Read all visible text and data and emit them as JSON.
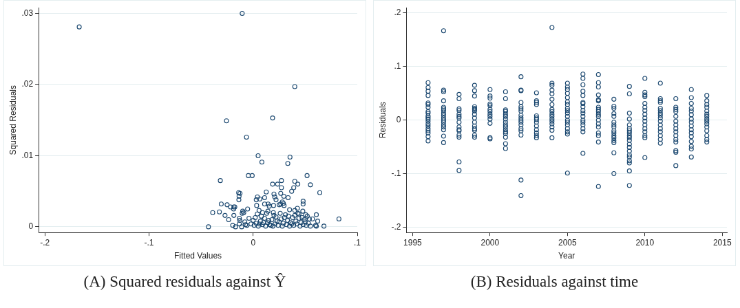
{
  "chart_data": [
    {
      "type": "scatter",
      "xlabel": "Fitted Values",
      "ylabel": "Squared Residuals",
      "color": "#1a476f",
      "marker": "circle",
      "grid": "y",
      "xlim": [
        -0.206,
        0.1
      ],
      "ylim": [
        -0.0008,
        0.0308
      ],
      "xticks": [
        {
          "value": -0.2,
          "label": "-.2"
        },
        {
          "value": -0.1,
          "label": "-.1"
        },
        0,
        {
          "value": 0.1,
          "label": ".1"
        }
      ],
      "yticks": [
        0,
        {
          "value": 0.01,
          "label": ".01"
        },
        {
          "value": 0.02,
          "label": ".02"
        },
        {
          "value": 0.03,
          "label": ".03"
        }
      ],
      "annotations": [
        "(A) Squared residuals against Ŷ"
      ],
      "x": [
        -0.167,
        -0.0105,
        0.04,
        -0.0256,
        0.0187,
        -0.0064,
        0.0048,
        0.0354,
        0.0084,
        0.0333,
        -0.0046,
        -0.0009,
        0.0518,
        -0.0315,
        0.0272,
        0.04,
        0.0187,
        0.0235,
        0.0429,
        0.055,
        0.039,
        0.0272,
        0.037,
        0.0126,
        0.064,
        -0.0139,
        -0.0126,
        0.02,
        0.0265,
        -0.0135,
        -0.0137,
        0.0041,
        0.003,
        0.0064,
        0.011,
        0.0208,
        0.022,
        0.0295,
        0.0336,
        0.048,
        0.048,
        0.028,
        0.029,
        -0.0306,
        -0.025,
        -0.0217,
        -0.0185,
        -0.0176,
        -0.0187,
        -0.0053,
        0.0034,
        0.011,
        0.0144,
        0.0155,
        0.0196,
        0.025,
        0.0265,
        0.0297,
        0.035,
        0.0425,
        0.04,
        -0.0388,
        -0.0324,
        -0.027,
        -0.0235,
        -0.0185,
        -0.01,
        -0.0105,
        -0.009,
        0.0057,
        0.009,
        0.0142,
        0.0194,
        0.0477,
        0.044,
        0.0505,
        0.0607,
        0.062,
        0.057,
        0.0824,
        -0.0429,
        0.068,
        0.0607,
        0.06,
        -0.0196,
        -0.0169,
        -0.0132,
        -0.011,
        -0.0073,
        -0.0132,
        -0.0128,
        0.001,
        0.003,
        0.005,
        0.007,
        0.009,
        0.011,
        0.012,
        0.014,
        0.016,
        0.018,
        0.019,
        0.021,
        0.022,
        0.024,
        0.025,
        0.027,
        0.028,
        0.029,
        0.031,
        0.032,
        0.033,
        0.035,
        0.036,
        0.038,
        0.039,
        0.041,
        0.042,
        0.044,
        0.045,
        0.046,
        0.048,
        0.049,
        0.051,
        0.052,
        0.053,
        0.055,
        0.002,
        0.004,
        0.006,
        0.008,
        0.01,
        0.013,
        0.015,
        0.017,
        0.02,
        0.023,
        0.026,
        0.03,
        0.034,
        0.037,
        0.04,
        0.043,
        0.047,
        -0.002,
        -0.004,
        -0.006,
        -0.008,
        0,
        0.05,
        0.054
      ],
      "values": [
        0.0281,
        0.03,
        0.0197,
        0.0149,
        0.0153,
        0.0126,
        0.01,
        0.0098,
        0.0091,
        0.0089,
        0.0072,
        0.0072,
        0.0072,
        0.0065,
        0.0065,
        0.0064,
        0.006,
        0.006,
        0.006,
        0.0059,
        0.0055,
        0.0055,
        0.005,
        0.0049,
        0.0048,
        0.0048,
        0.0047,
        0.0046,
        0.0047,
        0.0043,
        0.0038,
        0.0042,
        0.0038,
        0.0039,
        0.0041,
        0.0042,
        0.0038,
        0.0043,
        0.0041,
        0.0036,
        0.0032,
        0.0035,
        0.0033,
        0.0032,
        0.0031,
        0.0028,
        0.0028,
        0.0028,
        0.0025,
        0.0025,
        0.003,
        0.0032,
        0.0032,
        0.0029,
        0.003,
        0.0031,
        0.0032,
        0.003,
        0.0024,
        0.0026,
        0.0023,
        0.002,
        0.0021,
        0.0016,
        0.001,
        0.0016,
        0.0022,
        0.0019,
        0.002,
        0.0023,
        0.002,
        0.0022,
        0.002,
        0.0022,
        0.0018,
        0.0017,
        0.0017,
        0.0008,
        0.0011,
        0.0011,
        0,
        0.0001,
        0.0001,
        0.0002,
        0.0002,
        0,
        0.0004,
        0,
        0.0003,
        0.0012,
        0.0009,
        0.0002,
        0.0005,
        0.0001,
        0.0008,
        0.0003,
        0.0012,
        0.0001,
        0.0006,
        0.0003,
        0.001,
        0.0001,
        0.0004,
        0.0014,
        0.0002,
        0.0007,
        0.0011,
        0.0001,
        0.0005,
        0.0017,
        0.0003,
        0.0009,
        0.0001,
        0.0006,
        0.0013,
        0.0002,
        0.0008,
        0.0004,
        0.0012,
        0.0001,
        0.0006,
        0.0003,
        0.001,
        0.0002,
        0.0015,
        0.0005,
        0.0001,
        0.0013,
        0.0018,
        0.0004,
        0.0015,
        0.0006,
        0.0019,
        0.0009,
        0.0002,
        0.0016,
        0.0008,
        0.0019,
        0.0013,
        0.0015,
        0.0004,
        0.0016,
        0.0019,
        0.0013,
        0.0004,
        0.0012,
        0.0002,
        0.0007,
        0.0009,
        0.0007,
        0.0011
      ]
    },
    {
      "type": "scatter",
      "xlabel": "Year",
      "ylabel": "Residuals",
      "color": "#1a476f",
      "marker": "circle",
      "grid": "y",
      "xlim": [
        1994.6,
        2015.3
      ],
      "ylim": [
        -0.21,
        0.21
      ],
      "xticks": [
        1995,
        2000,
        2005,
        2010,
        2015
      ],
      "yticks": [
        {
          "value": -0.2,
          "label": "-.2"
        },
        {
          "value": -0.1,
          "label": "-.1"
        },
        0,
        {
          "value": 0.1,
          "label": ".1"
        },
        {
          "value": 0.2,
          "label": ".2"
        }
      ],
      "annotations": [
        "(B) Residuals against time"
      ],
      "x": [
        1996,
        1996,
        1996,
        1996,
        1996,
        1996,
        1996,
        1996,
        1996,
        1996,
        1996,
        1996,
        1996,
        1996,
        1996,
        1996,
        1996,
        1996,
        1996,
        1996,
        1997,
        1997,
        1997,
        1997,
        1997,
        1997,
        1997,
        1997,
        1997,
        1997,
        1997,
        1997,
        1997,
        1997,
        1997,
        1997,
        1997,
        1998,
        1998,
        1998,
        1998,
        1998,
        1998,
        1998,
        1998,
        1998,
        1998,
        1998,
        1998,
        1998,
        1998,
        1998,
        1999,
        1999,
        1999,
        1999,
        1999,
        1999,
        1999,
        1999,
        1999,
        1999,
        1999,
        1999,
        1999,
        1999,
        1999,
        2000,
        2000,
        2000,
        2000,
        2000,
        2000,
        2000,
        2000,
        2000,
        2000,
        2000,
        2000,
        2000,
        2001,
        2001,
        2001,
        2001,
        2001,
        2001,
        2001,
        2001,
        2001,
        2001,
        2001,
        2001,
        2001,
        2001,
        2001,
        2001,
        2002,
        2002,
        2002,
        2002,
        2002,
        2002,
        2002,
        2002,
        2002,
        2002,
        2002,
        2002,
        2002,
        2002,
        2002,
        2002,
        2002,
        2003,
        2003,
        2003,
        2003,
        2003,
        2003,
        2003,
        2003,
        2003,
        2003,
        2003,
        2003,
        2003,
        2004,
        2004,
        2004,
        2004,
        2004,
        2004,
        2004,
        2004,
        2004,
        2004,
        2004,
        2004,
        2004,
        2004,
        2004,
        2004,
        2004,
        2005,
        2005,
        2005,
        2005,
        2005,
        2005,
        2005,
        2005,
        2005,
        2005,
        2005,
        2005,
        2005,
        2005,
        2005,
        2005,
        2005,
        2005,
        2006,
        2006,
        2006,
        2006,
        2006,
        2006,
        2006,
        2006,
        2006,
        2006,
        2006,
        2006,
        2006,
        2006,
        2006,
        2006,
        2006,
        2007,
        2007,
        2007,
        2007,
        2007,
        2007,
        2007,
        2007,
        2007,
        2007,
        2007,
        2007,
        2007,
        2007,
        2007,
        2007,
        2007,
        2007,
        2008,
        2008,
        2008,
        2008,
        2008,
        2008,
        2008,
        2008,
        2008,
        2008,
        2008,
        2008,
        2008,
        2008,
        2008,
        2008,
        2009,
        2009,
        2009,
        2009,
        2009,
        2009,
        2009,
        2009,
        2009,
        2009,
        2009,
        2009,
        2009,
        2009,
        2009,
        2009,
        2009,
        2009,
        2009,
        2009,
        2010,
        2010,
        2010,
        2010,
        2010,
        2010,
        2010,
        2010,
        2010,
        2010,
        2010,
        2010,
        2010,
        2010,
        2010,
        2010,
        2011,
        2011,
        2011,
        2011,
        2011,
        2011,
        2011,
        2011,
        2011,
        2011,
        2011,
        2011,
        2011,
        2011,
        2011,
        2011,
        2012,
        2012,
        2012,
        2012,
        2012,
        2012,
        2012,
        2012,
        2012,
        2012,
        2012,
        2012,
        2012,
        2012,
        2012,
        2013,
        2013,
        2013,
        2013,
        2013,
        2013,
        2013,
        2013,
        2013,
        2013,
        2013,
        2013,
        2013,
        2013,
        2013,
        2013,
        2014,
        2014,
        2014,
        2014,
        2014,
        2014,
        2014,
        2014,
        2014,
        2014,
        2014,
        2014,
        2014,
        2014,
        2014
      ],
      "values": [
        0.07,
        0.061,
        0.054,
        0.046,
        0.032,
        0.029,
        0.024,
        0.016,
        0.013,
        0.008,
        0.005,
        0.002,
        -0.002,
        -0.007,
        -0.011,
        -0.016,
        -0.02,
        -0.024,
        -0.031,
        -0.039,
        0.167,
        0.056,
        0.053,
        0.036,
        0.024,
        0.021,
        0.018,
        0.013,
        0.009,
        0.004,
        0,
        -0.004,
        -0.009,
        -0.013,
        -0.018,
        -0.03,
        -0.042,
        0.048,
        0.04,
        0.021,
        0.018,
        0.011,
        0.007,
        0.004,
        -0.004,
        -0.013,
        -0.018,
        -0.02,
        -0.028,
        -0.032,
        -0.078,
        -0.094,
        0.065,
        0.055,
        0.045,
        0.025,
        0.022,
        0.02,
        0.017,
        0.011,
        0.004,
        -0.004,
        -0.011,
        -0.016,
        -0.019,
        -0.028,
        -0.032,
        0.057,
        0.045,
        0.041,
        0.03,
        0.027,
        0.02,
        0.016,
        0.011,
        0.007,
        0.002,
        -0.006,
        -0.033,
        -0.035,
        0.053,
        0.04,
        0.019,
        0.016,
        0.011,
        0.007,
        0.002,
        -0.004,
        -0.009,
        -0.013,
        -0.018,
        -0.022,
        -0.025,
        -0.032,
        -0.044,
        -0.053,
        0.081,
        0.056,
        0.055,
        0.033,
        0.025,
        0.021,
        0.017,
        0.009,
        0.004,
        0,
        -0.004,
        -0.009,
        -0.016,
        -0.02,
        -0.028,
        -0.112,
        -0.141,
        0.051,
        0.036,
        0.033,
        0.029,
        0.008,
        0.004,
        0.001,
        -0.004,
        -0.011,
        -0.018,
        -0.024,
        -0.029,
        -0.033,
        0.173,
        0.069,
        0.065,
        0.056,
        0.049,
        0.039,
        0.029,
        0.02,
        0.016,
        0.011,
        0.007,
        0.002,
        -0.002,
        -0.007,
        -0.013,
        -0.019,
        -0.033,
        0.069,
        0.062,
        0.057,
        0.05,
        0.042,
        0.034,
        0.029,
        0.022,
        0.018,
        0.013,
        0.007,
        0,
        -0.004,
        -0.009,
        -0.016,
        -0.022,
        -0.026,
        -0.099,
        0.086,
        0.078,
        0.066,
        0.054,
        0.046,
        0.033,
        0.031,
        0.025,
        0.018,
        0.013,
        0.007,
        0,
        -0.004,
        -0.009,
        -0.016,
        -0.022,
        -0.062,
        0.085,
        0.07,
        0.062,
        0.047,
        0.038,
        0.036,
        0.024,
        0.02,
        0.016,
        0.011,
        0.007,
        0,
        -0.007,
        -0.013,
        -0.024,
        -0.029,
        -0.041,
        -0.124,
        0.039,
        0.026,
        0.022,
        0.012,
        0.007,
        -0.004,
        -0.009,
        -0.013,
        -0.02,
        -0.024,
        -0.029,
        -0.033,
        -0.038,
        -0.042,
        -0.061,
        -0.1,
        0.063,
        0.049,
        0.013,
        0.002,
        -0.009,
        -0.016,
        -0.02,
        -0.024,
        -0.029,
        -0.033,
        -0.038,
        -0.045,
        -0.051,
        -0.058,
        -0.065,
        -0.069,
        -0.076,
        -0.08,
        -0.095,
        -0.122,
        0.078,
        0.052,
        0.047,
        0.044,
        0.031,
        0.024,
        0.018,
        0.011,
        0.004,
        -0.002,
        -0.009,
        -0.016,
        -0.022,
        -0.029,
        -0.033,
        -0.07,
        0.069,
        0.04,
        0.036,
        0.033,
        0.022,
        0.018,
        0.013,
        0.009,
        0.004,
        -0.002,
        -0.009,
        -0.016,
        -0.022,
        -0.029,
        -0.036,
        -0.043,
        0.04,
        0.024,
        0.02,
        0.016,
        0.007,
        -0.002,
        -0.009,
        -0.016,
        -0.022,
        -0.029,
        -0.036,
        -0.041,
        -0.057,
        -0.06,
        -0.085,
        0.057,
        0.042,
        0.031,
        0.022,
        0.017,
        0.01,
        0.002,
        -0.004,
        -0.011,
        -0.018,
        -0.024,
        -0.031,
        -0.04,
        -0.049,
        -0.054,
        -0.069,
        0.046,
        0.036,
        0.029,
        0.024,
        0.017,
        0.011,
        0.007,
        0.002,
        -0.002,
        -0.007,
        -0.013,
        -0.02,
        -0.029,
        -0.036,
        -0.041
      ]
    }
  ]
}
